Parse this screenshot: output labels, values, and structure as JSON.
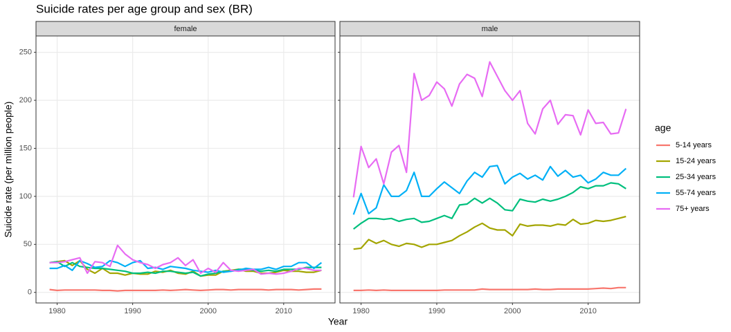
{
  "title": "Suicide rates per age group and sex (BR)",
  "x_label": "Year",
  "y_label": "Suicide rate (per million people)",
  "legend_title": "age",
  "chart_data": [
    {
      "type": "line",
      "title": "female",
      "x": [
        1979,
        1980,
        1981,
        1982,
        1983,
        1984,
        1985,
        1986,
        1987,
        1988,
        1989,
        1990,
        1991,
        1992,
        1993,
        1994,
        1995,
        1996,
        1997,
        1998,
        1999,
        2000,
        2001,
        2002,
        2003,
        2004,
        2005,
        2006,
        2007,
        2008,
        2009,
        2010,
        2011,
        2012,
        2013,
        2014,
        2015
      ],
      "xlim": [
        1977.2,
        2016.8
      ],
      "xticks": [
        1980,
        1990,
        2000,
        2010
      ],
      "ylim": [
        -11,
        267
      ],
      "yticks": [
        0,
        50,
        100,
        150,
        200,
        250
      ],
      "grid": true,
      "series": [
        {
          "name": "5-14 years",
          "color": "#F8766D",
          "values": [
            3,
            2,
            2.5,
            2.5,
            2.5,
            2.5,
            2.5,
            2,
            2,
            1.5,
            2,
            2,
            2,
            2,
            2,
            2.5,
            2,
            2.5,
            3,
            2.5,
            2,
            2.5,
            3,
            3,
            2.5,
            3,
            3,
            3,
            3,
            2.5,
            3,
            3,
            3,
            2.5,
            3,
            3.5,
            3.5
          ]
        },
        {
          "name": "15-24 years",
          "color": "#A3A500",
          "values": [
            31,
            32,
            33,
            28,
            33,
            24,
            20,
            25,
            20,
            20,
            18,
            20,
            19,
            19,
            22,
            21,
            23,
            20,
            19,
            22,
            17,
            18,
            18,
            22,
            23,
            24,
            22,
            22,
            20,
            20,
            21,
            23,
            22,
            22,
            21,
            21,
            23
          ]
        },
        {
          "name": "25-34 years",
          "color": "#00BF7D",
          "values": [
            31,
            32,
            27,
            31,
            27,
            26,
            25,
            25,
            24,
            23,
            22,
            20,
            20,
            21,
            20,
            22,
            22,
            21,
            20,
            21,
            17,
            19,
            20,
            22,
            22,
            24,
            24,
            23,
            22,
            23,
            22,
            24,
            24,
            24,
            26,
            26,
            26
          ]
        },
        {
          "name": "55-74 years",
          "color": "#00B0F6",
          "values": [
            25,
            25,
            28,
            23,
            33,
            30,
            26,
            27,
            33,
            31,
            27,
            31,
            33,
            25,
            26,
            24,
            27,
            26,
            25,
            23,
            22,
            21,
            23,
            21,
            22,
            23,
            25,
            24,
            24,
            26,
            24,
            27,
            27,
            31,
            31,
            25,
            31
          ]
        },
        {
          "name": "75+ years",
          "color": "#E76BF3",
          "values": [
            31,
            31,
            32,
            34,
            36,
            20,
            32,
            31,
            27,
            49,
            40,
            34,
            31,
            29,
            25,
            29,
            31,
            36,
            28,
            34,
            20,
            25,
            21,
            31,
            23,
            22,
            23,
            24,
            19,
            20,
            19,
            20,
            22,
            25,
            25,
            23,
            23
          ]
        }
      ]
    },
    {
      "type": "line",
      "title": "male",
      "x": [
        1979,
        1980,
        1981,
        1982,
        1983,
        1984,
        1985,
        1986,
        1987,
        1988,
        1989,
        1990,
        1991,
        1992,
        1993,
        1994,
        1995,
        1996,
        1997,
        1998,
        1999,
        2000,
        2001,
        2002,
        2003,
        2004,
        2005,
        2006,
        2007,
        2008,
        2009,
        2010,
        2011,
        2012,
        2013,
        2014,
        2015
      ],
      "xlim": [
        1977.2,
        2016.8
      ],
      "xticks": [
        1980,
        1990,
        2000,
        2010
      ],
      "ylim": [
        -11,
        267
      ],
      "yticks": [
        0,
        50,
        100,
        150,
        200,
        250
      ],
      "grid": true,
      "series": [
        {
          "values": [
            2,
            2,
            2.5,
            2,
            2.5,
            2,
            2,
            2,
            2,
            2,
            2,
            2,
            2.5,
            2.5,
            2.5,
            2.5,
            2.5,
            3.5,
            3,
            3,
            3,
            3,
            3,
            3,
            3.5,
            3,
            3,
            3.5,
            3.5,
            3.5,
            3.5,
            3.5,
            4,
            4.5,
            4,
            5,
            5
          ]
        },
        {
          "values": [
            45,
            46,
            55,
            51,
            54,
            50,
            48,
            51,
            50,
            47,
            50,
            50,
            52,
            54,
            59,
            63,
            68,
            72,
            67,
            65,
            65,
            59,
            71,
            69,
            70,
            70,
            69,
            71,
            70,
            76,
            71,
            72,
            75,
            74,
            75,
            77,
            79
          ]
        },
        {
          "values": [
            66,
            72,
            77,
            77,
            76,
            77,
            74,
            76,
            77,
            73,
            74,
            77,
            80,
            77,
            91,
            92,
            98,
            93,
            98,
            93,
            86,
            85,
            97,
            95,
            94,
            97,
            95,
            97,
            100,
            104,
            110,
            108,
            111,
            111,
            114,
            113,
            108
          ]
        },
        {
          "values": [
            81,
            103,
            82,
            88,
            112,
            100,
            100,
            106,
            125,
            100,
            100,
            108,
            115,
            109,
            103,
            116,
            125,
            120,
            131,
            132,
            113,
            120,
            124,
            118,
            122,
            117,
            131,
            121,
            127,
            120,
            122,
            114,
            118,
            125,
            122,
            122,
            129
          ]
        },
        {
          "values": [
            99,
            152,
            130,
            139,
            113,
            146,
            153,
            125,
            228,
            200,
            205,
            219,
            212,
            194,
            217,
            227,
            223,
            204,
            240,
            225,
            210,
            200,
            210,
            176,
            165,
            191,
            200,
            175,
            185,
            184,
            164,
            190,
            176,
            177,
            165,
            166,
            191
          ]
        }
      ]
    }
  ]
}
